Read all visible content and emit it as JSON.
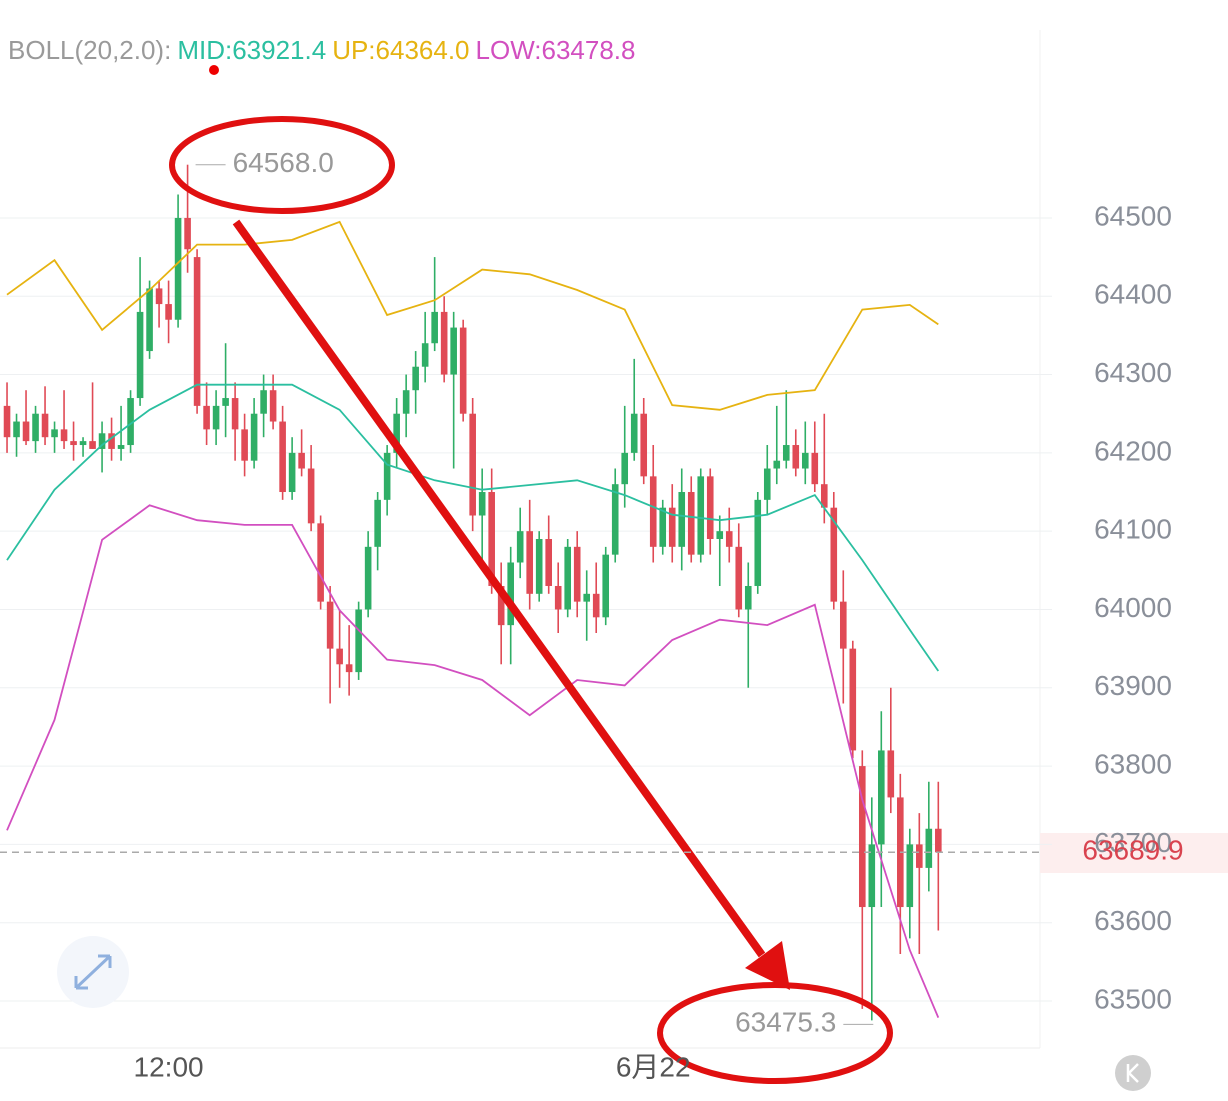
{
  "chart_data": {
    "type": "candlestick",
    "indicator": "BOLL(20,2.0):",
    "ylim": [
      63440,
      64740
    ],
    "xlim": [
      -0.74,
      108.7
    ],
    "yticks": [
      63500,
      63600,
      63700,
      63800,
      63900,
      64000,
      64100,
      64200,
      64300,
      64400,
      64500
    ],
    "xticks": [
      {
        "value": 17,
        "label": "12:00"
      },
      {
        "value": 68,
        "label": "6月22"
      }
    ],
    "grid": true,
    "up_color": "#2fae66",
    "down_color": "#e04a55",
    "candles": [
      [
        64260,
        64290,
        64200,
        64220
      ],
      [
        64220,
        64250,
        64195,
        64240
      ],
      [
        64240,
        64280,
        64210,
        64215
      ],
      [
        64215,
        64260,
        64200,
        64250
      ],
      [
        64250,
        64285,
        64210,
        64220
      ],
      [
        64220,
        64240,
        64200,
        64230
      ],
      [
        64230,
        64280,
        64205,
        64215
      ],
      [
        64215,
        64240,
        64190,
        64210
      ],
      [
        64210,
        64220,
        64195,
        64215
      ],
      [
        64215,
        64290,
        64205,
        64205
      ],
      [
        64205,
        64240,
        64175,
        64225
      ],
      [
        64225,
        64245,
        64190,
        64205
      ],
      [
        64205,
        64260,
        64190,
        64210
      ],
      [
        64210,
        64280,
        64200,
        64270
      ],
      [
        64270,
        64450,
        64260,
        64380
      ],
      [
        64330,
        64420,
        64320,
        64410
      ],
      [
        64410,
        64420,
        64360,
        64390
      ],
      [
        64390,
        64420,
        64340,
        64370
      ],
      [
        64370,
        64530,
        64360,
        64500
      ],
      [
        64500,
        64568,
        64430,
        64460
      ],
      [
        64450,
        64460,
        64250,
        64260
      ],
      [
        64260,
        64290,
        64210,
        64230
      ],
      [
        64230,
        64280,
        64210,
        64260
      ],
      [
        64260,
        64340,
        64220,
        64270
      ],
      [
        64270,
        64290,
        64190,
        64230
      ],
      [
        64230,
        64250,
        64170,
        64190
      ],
      [
        64190,
        64270,
        64180,
        64250
      ],
      [
        64250,
        64300,
        64220,
        64280
      ],
      [
        64280,
        64300,
        64230,
        64240
      ],
      [
        64240,
        64260,
        64140,
        64150
      ],
      [
        64150,
        64220,
        64140,
        64200
      ],
      [
        64200,
        64230,
        64170,
        64180
      ],
      [
        64180,
        64210,
        64100,
        64110
      ],
      [
        64110,
        64120,
        64000,
        64010
      ],
      [
        64010,
        64030,
        63880,
        63950
      ],
      [
        63950,
        64000,
        63900,
        63930
      ],
      [
        63930,
        63980,
        63890,
        63920
      ],
      [
        63920,
        64010,
        63910,
        64000
      ],
      [
        64000,
        64100,
        63990,
        64080
      ],
      [
        64080,
        64150,
        64050,
        64140
      ],
      [
        64140,
        64210,
        64120,
        64200
      ],
      [
        64200,
        64270,
        64180,
        64250
      ],
      [
        64250,
        64300,
        64220,
        64280
      ],
      [
        64280,
        64330,
        64250,
        64310
      ],
      [
        64310,
        64380,
        64290,
        64340
      ],
      [
        64340,
        64450,
        64330,
        64380
      ],
      [
        64380,
        64400,
        64290,
        64300
      ],
      [
        64300,
        64380,
        64180,
        64360
      ],
      [
        64360,
        64370,
        64240,
        64250
      ],
      [
        64250,
        64270,
        64100,
        64120
      ],
      [
        64120,
        64180,
        64060,
        64150
      ],
      [
        64150,
        64180,
        64020,
        64030
      ],
      [
        64030,
        64060,
        63930,
        63980
      ],
      [
        63980,
        64080,
        63930,
        64060
      ],
      [
        64060,
        64130,
        64040,
        64100
      ],
      [
        64100,
        64140,
        64000,
        64020
      ],
      [
        64020,
        64100,
        64010,
        64090
      ],
      [
        64090,
        64120,
        64020,
        64030
      ],
      [
        64030,
        64060,
        63970,
        64000
      ],
      [
        64000,
        64090,
        63990,
        64080
      ],
      [
        64080,
        64100,
        63990,
        64010
      ],
      [
        64010,
        64050,
        63960,
        64020
      ],
      [
        64020,
        64060,
        63970,
        63990
      ],
      [
        63990,
        64080,
        63980,
        64070
      ],
      [
        64070,
        64180,
        64060,
        64160
      ],
      [
        64160,
        64260,
        64130,
        64200
      ],
      [
        64200,
        64320,
        64190,
        64250
      ],
      [
        64250,
        64270,
        64160,
        64170
      ],
      [
        64170,
        64210,
        64060,
        64080
      ],
      [
        64080,
        64140,
        64070,
        64130
      ],
      [
        64130,
        64160,
        64060,
        64080
      ],
      [
        64080,
        64180,
        64050,
        64150
      ],
      [
        64150,
        64170,
        64060,
        64070
      ],
      [
        64070,
        64180,
        64060,
        64170
      ],
      [
        64170,
        64180,
        64070,
        64090
      ],
      [
        64090,
        64120,
        64030,
        64100
      ],
      [
        64100,
        64130,
        64060,
        64080
      ],
      [
        64080,
        64110,
        63990,
        64000
      ],
      [
        64000,
        64060,
        63900,
        64030
      ],
      [
        64030,
        64150,
        64020,
        64140
      ],
      [
        64140,
        64210,
        64120,
        64180
      ],
      [
        64180,
        64260,
        64160,
        64190
      ],
      [
        64190,
        64280,
        64180,
        64210
      ],
      [
        64210,
        64230,
        64170,
        64180
      ],
      [
        64180,
        64240,
        64160,
        64200
      ],
      [
        64200,
        64240,
        64150,
        64160
      ],
      [
        64160,
        64250,
        64110,
        64130
      ],
      [
        64130,
        64150,
        64000,
        64010
      ],
      [
        64010,
        64050,
        63880,
        63950
      ],
      [
        63950,
        63960,
        63810,
        63820
      ],
      [
        63800,
        63820,
        63490,
        63620
      ],
      [
        63620,
        63760,
        63475.3,
        63700
      ],
      [
        63700,
        63870,
        63620,
        63820
      ],
      [
        63820,
        63900,
        63740,
        63760
      ],
      [
        63760,
        63790,
        63560,
        63620
      ],
      [
        63620,
        63720,
        63580,
        63700
      ],
      [
        63700,
        63740,
        63560,
        63670
      ],
      [
        63670,
        63780,
        63640,
        63720
      ],
      [
        63720,
        63780,
        63590,
        63689.9
      ]
    ],
    "series": [
      {
        "name": "MID:63921.4",
        "color": "#2bbfa0",
        "x": [
          0,
          5,
          10,
          15,
          20,
          25,
          30,
          35,
          40,
          45,
          50,
          55,
          60,
          65,
          70,
          75,
          80,
          85,
          90,
          95,
          98
        ],
        "values": [
          64063,
          64153,
          64210,
          64255,
          64287,
          64287,
          64287,
          64255,
          64185,
          64165,
          64153,
          64159,
          64165,
          64146,
          64121,
          64114,
          64121,
          64146,
          64063,
          63974,
          63921.4
        ]
      },
      {
        "name": "UP:64364.0",
        "color": "#e6b311",
        "x": [
          0,
          5,
          10,
          15,
          20,
          25,
          30,
          35,
          40,
          45,
          50,
          55,
          60,
          65,
          70,
          75,
          80,
          85,
          90,
          95,
          98
        ],
        "values": [
          64402,
          64446,
          64357,
          64408,
          64466,
          64466,
          64472,
          64495,
          64376,
          64395,
          64434,
          64428,
          64408,
          64383,
          64261,
          64255,
          64274,
          64280,
          64383,
          64389,
          64364
        ]
      },
      {
        "name": "LOW:63478.8",
        "color": "#d24fc0",
        "x": [
          0,
          5,
          10,
          15,
          20,
          25,
          30,
          35,
          40,
          45,
          50,
          55,
          60,
          65,
          70,
          75,
          80,
          85,
          90,
          95,
          98
        ],
        "values": [
          63718,
          63859,
          64089,
          64133,
          64114,
          64108,
          64108,
          63999,
          63936,
          63929,
          63910,
          63865,
          63910,
          63903,
          63961,
          63987,
          63980,
          64006,
          63757,
          63565,
          63478.8
        ]
      }
    ],
    "high_marker": {
      "index": 19,
      "value": 64568,
      "label": "64568.0"
    },
    "low_marker": {
      "index": 92,
      "value": 63475.3,
      "label": "63475.3"
    },
    "last_price": {
      "value": 63689.9,
      "label": "63689.9"
    }
  }
}
